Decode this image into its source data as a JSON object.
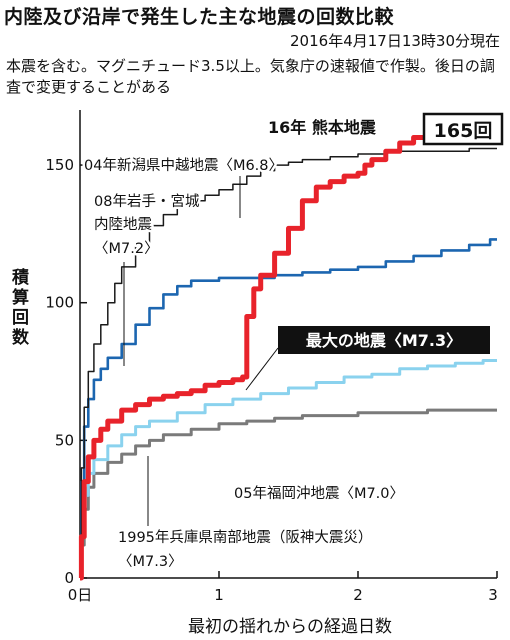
{
  "header": {
    "title": "内陸及び沿岸で発生した主な地震の回数比較",
    "datestamp": "2016年4月17日13時30分現在",
    "note": "本震を含む。マグニチュード3.5以上。気象庁の速報値で作製。後日の調査で変更することがある"
  },
  "chart_data": {
    "type": "line",
    "xlabel": "最初の揺れからの経過日数",
    "ylabel": "積算回数",
    "xlim": [
      0,
      3
    ],
    "ylim": [
      0,
      170
    ],
    "x_ticks": [
      {
        "value": 0,
        "label": "0日"
      },
      {
        "value": 1,
        "label": "1"
      },
      {
        "value": 2,
        "label": "2"
      },
      {
        "value": 3,
        "label": "3"
      }
    ],
    "y_ticks": [
      0,
      50,
      100,
      150
    ],
    "grid": false,
    "colors": {
      "kumamoto": "#e8232b",
      "niigata": "#1a1a1a",
      "iwate": "#1c66b0",
      "fukuoka": "#8ad2ee",
      "hyogo": "#7a7a7a"
    },
    "series": [
      {
        "key": "kumamoto",
        "year_label": "16年",
        "name": "熊本地震",
        "magnitude": "",
        "final_count": "165回",
        "points": [
          [
            0,
            0
          ],
          [
            0.01,
            15
          ],
          [
            0.03,
            35
          ],
          [
            0.06,
            44
          ],
          [
            0.1,
            50
          ],
          [
            0.15,
            54
          ],
          [
            0.2,
            57
          ],
          [
            0.3,
            61
          ],
          [
            0.4,
            63
          ],
          [
            0.5,
            65
          ],
          [
            0.6,
            66
          ],
          [
            0.7,
            67
          ],
          [
            0.8,
            68
          ],
          [
            0.9,
            70
          ],
          [
            1.0,
            71
          ],
          [
            1.1,
            72
          ],
          [
            1.15,
            72
          ],
          [
            1.17,
            73
          ],
          [
            1.2,
            95
          ],
          [
            1.25,
            105
          ],
          [
            1.3,
            110
          ],
          [
            1.4,
            118
          ],
          [
            1.5,
            127
          ],
          [
            1.6,
            137
          ],
          [
            1.7,
            142
          ],
          [
            1.8,
            144
          ],
          [
            1.9,
            146
          ],
          [
            2.0,
            147
          ],
          [
            2.05,
            150
          ],
          [
            2.1,
            152
          ],
          [
            2.2,
            155
          ],
          [
            2.3,
            158
          ],
          [
            2.4,
            160
          ],
          [
            2.5,
            162
          ],
          [
            2.6,
            163
          ],
          [
            2.65,
            165
          ]
        ]
      },
      {
        "key": "niigata",
        "year_label": "04年",
        "name": "新潟県中越地震",
        "magnitude": "〈M6.8〉",
        "final_count": "",
        "points": [
          [
            0,
            0
          ],
          [
            0.01,
            40
          ],
          [
            0.03,
            62
          ],
          [
            0.06,
            75
          ],
          [
            0.1,
            85
          ],
          [
            0.15,
            92
          ],
          [
            0.2,
            100
          ],
          [
            0.25,
            107
          ],
          [
            0.3,
            113
          ],
          [
            0.4,
            122
          ],
          [
            0.5,
            128
          ],
          [
            0.6,
            132
          ],
          [
            0.7,
            135
          ],
          [
            0.8,
            137
          ],
          [
            0.9,
            139
          ],
          [
            1.0,
            141
          ],
          [
            1.1,
            143
          ],
          [
            1.2,
            146
          ],
          [
            1.3,
            148
          ],
          [
            1.4,
            150
          ],
          [
            1.5,
            151
          ],
          [
            1.6,
            152
          ],
          [
            1.8,
            153
          ],
          [
            2.0,
            154
          ],
          [
            2.2,
            155
          ],
          [
            2.5,
            155
          ],
          [
            2.8,
            156
          ],
          [
            3.0,
            156
          ]
        ]
      },
      {
        "key": "iwate",
        "year_label": "08年",
        "name": "岩手・宮城内陸地震",
        "magnitude": "〈M7.2〉",
        "final_count": "",
        "points": [
          [
            0,
            0
          ],
          [
            0.01,
            35
          ],
          [
            0.03,
            55
          ],
          [
            0.06,
            65
          ],
          [
            0.1,
            72
          ],
          [
            0.15,
            76
          ],
          [
            0.2,
            80
          ],
          [
            0.3,
            85
          ],
          [
            0.4,
            92
          ],
          [
            0.5,
            98
          ],
          [
            0.6,
            103
          ],
          [
            0.7,
            106
          ],
          [
            0.8,
            108
          ],
          [
            1.0,
            109
          ],
          [
            1.2,
            109
          ],
          [
            1.4,
            110
          ],
          [
            1.6,
            111
          ],
          [
            1.8,
            112
          ],
          [
            2.0,
            113
          ],
          [
            2.2,
            115
          ],
          [
            2.4,
            117
          ],
          [
            2.6,
            119
          ],
          [
            2.8,
            121
          ],
          [
            2.95,
            123
          ],
          [
            3.0,
            123
          ]
        ]
      },
      {
        "key": "fukuoka",
        "year_label": "05年",
        "name": "福岡沖地震",
        "magnitude": "〈M7.0〉",
        "final_count": "",
        "points": [
          [
            0,
            0
          ],
          [
            0.01,
            15
          ],
          [
            0.03,
            30
          ],
          [
            0.06,
            38
          ],
          [
            0.1,
            43
          ],
          [
            0.2,
            48
          ],
          [
            0.3,
            52
          ],
          [
            0.4,
            55
          ],
          [
            0.5,
            57
          ],
          [
            0.7,
            60
          ],
          [
            0.9,
            63
          ],
          [
            1.1,
            65
          ],
          [
            1.3,
            67
          ],
          [
            1.5,
            69
          ],
          [
            1.7,
            71
          ],
          [
            1.9,
            73
          ],
          [
            2.1,
            74
          ],
          [
            2.3,
            76
          ],
          [
            2.5,
            77
          ],
          [
            2.7,
            78
          ],
          [
            2.9,
            79
          ],
          [
            3.0,
            79
          ]
        ]
      },
      {
        "key": "hyogo",
        "year_label": "1995年",
        "name": "兵庫県南部地震（阪神大震災）",
        "magnitude": "〈M7.3〉",
        "final_count": "",
        "points": [
          [
            0,
            0
          ],
          [
            0.01,
            12
          ],
          [
            0.03,
            25
          ],
          [
            0.06,
            33
          ],
          [
            0.1,
            38
          ],
          [
            0.2,
            42
          ],
          [
            0.3,
            45
          ],
          [
            0.4,
            48
          ],
          [
            0.5,
            50
          ],
          [
            0.6,
            52
          ],
          [
            0.8,
            54
          ],
          [
            1.0,
            56
          ],
          [
            1.2,
            57
          ],
          [
            1.4,
            58
          ],
          [
            1.6,
            59
          ],
          [
            1.8,
            59
          ],
          [
            2.0,
            60
          ],
          [
            2.2,
            60
          ],
          [
            2.5,
            61
          ],
          [
            2.8,
            61
          ],
          [
            3.0,
            61
          ]
        ]
      }
    ],
    "annotations": {
      "max_quake": "最大の地震〈M7.3〉",
      "kumamoto_title": "16年 熊本地震",
      "kumamoto_count": "165回",
      "niigata": "04年新潟県中越地震〈M6.8〉",
      "iwate_line1": "08年岩手・宮城",
      "iwate_line2": "内陸地震",
      "iwate_line3": "〈M7.2〉",
      "fukuoka": "05年福岡沖地震〈M7.0〉",
      "hyogo_line1": "1995年兵庫県南部地震（阪神大震災）",
      "hyogo_line2": "〈M7.3〉",
      "ylabel_chars": [
        "積",
        "算",
        "回",
        "数"
      ]
    }
  }
}
